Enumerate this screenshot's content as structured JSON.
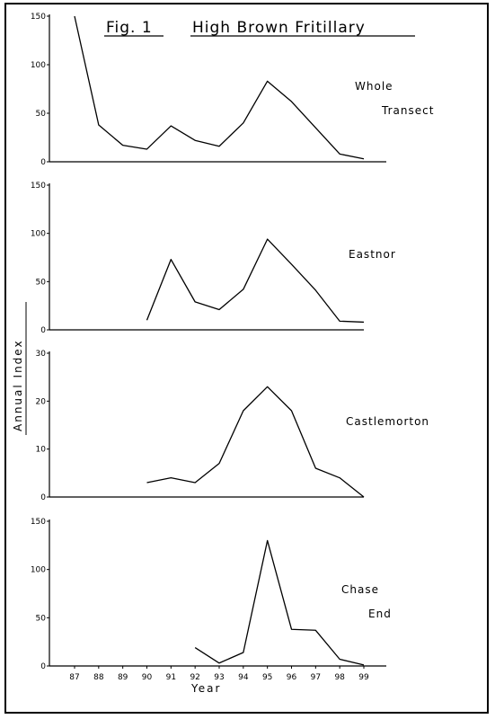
{
  "figure": {
    "fig_label": "Fig. 1",
    "title": "High Brown Fritillary",
    "y_axis_title": "Annual Index",
    "x_axis_title": "Year"
  },
  "chart_data": [
    {
      "type": "line",
      "label_lines": [
        "Whole",
        "Transect"
      ],
      "x": [
        87,
        88,
        89,
        90,
        91,
        92,
        93,
        94,
        95,
        96,
        97,
        98,
        99
      ],
      "values": [
        160,
        38,
        17,
        13,
        37,
        22,
        16,
        40,
        83,
        62,
        35,
        8,
        3
      ],
      "ylim": [
        0,
        150
      ],
      "yticks": [
        0,
        50,
        100,
        150
      ]
    },
    {
      "type": "line",
      "label_lines": [
        "Eastnor"
      ],
      "x": [
        90,
        91,
        92,
        93,
        94,
        95,
        96,
        97,
        98,
        99
      ],
      "values": [
        10,
        73,
        29,
        21,
        42,
        94,
        68,
        41,
        9,
        8
      ],
      "ylim": [
        0,
        150
      ],
      "yticks": [
        0,
        50,
        100,
        150
      ]
    },
    {
      "type": "line",
      "label_lines": [
        "Castlemorton"
      ],
      "x": [
        90,
        91,
        92,
        93,
        94,
        95,
        96,
        97,
        98,
        99
      ],
      "values": [
        3,
        4,
        3,
        7,
        18,
        23,
        18,
        6,
        4,
        0
      ],
      "ylim": [
        0,
        30
      ],
      "yticks": [
        0,
        10,
        20,
        30
      ]
    },
    {
      "type": "line",
      "label_lines": [
        "Chase",
        "End"
      ],
      "x": [
        92,
        93,
        94,
        95,
        96,
        97,
        98,
        99
      ],
      "values": [
        19,
        3,
        14,
        130,
        38,
        37,
        7,
        1
      ],
      "ylim": [
        0,
        150
      ],
      "yticks": [
        0,
        50,
        100,
        150
      ]
    }
  ],
  "x_axis": {
    "min": 87,
    "max": 99,
    "tick_labels": [
      "87",
      "88",
      "89",
      "90",
      "91",
      "92",
      "93",
      "94",
      "95",
      "96",
      "97",
      "98",
      "99"
    ]
  }
}
